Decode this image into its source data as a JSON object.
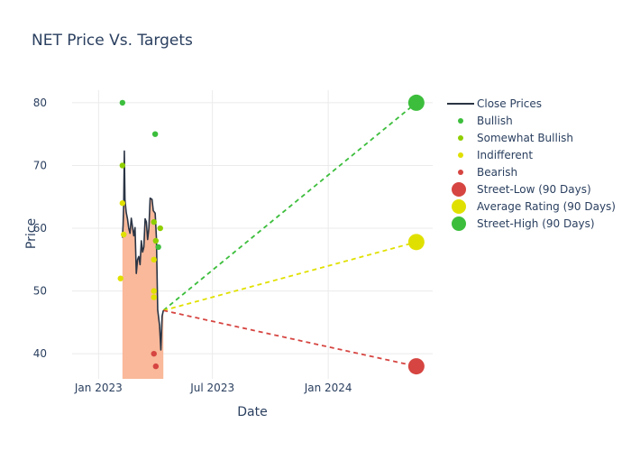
{
  "chart_data": {
    "type": "line",
    "title": "NET Price Vs. Targets",
    "xlabel": "Date",
    "ylabel": "Price",
    "xlim": [
      "2022-11-20",
      "2024-06-15"
    ],
    "ylim": [
      36,
      82
    ],
    "x_ticks": [
      {
        "date": "2023-01-01",
        "label": "Jan 2023"
      },
      {
        "date": "2023-07-01",
        "label": "Jul 2023"
      },
      {
        "date": "2024-01-01",
        "label": "Jan 2024"
      }
    ],
    "y_ticks": [
      40,
      50,
      60,
      70,
      80
    ],
    "grid": true,
    "legend_position": "right",
    "colors": {
      "close": "#2a3444",
      "fill": "#f9b99a",
      "bullish": "#3cbe3c",
      "somewhat_bullish": "#8fce00",
      "indifferent": "#e0e000",
      "bearish": "#d64541"
    },
    "close_prices": [
      [
        "2023-02-08",
        58.5
      ],
      [
        "2023-02-09",
        60.5
      ],
      [
        "2023-02-10",
        64.0
      ],
      [
        "2023-02-11",
        72.3
      ],
      [
        "2023-02-12",
        64.5
      ],
      [
        "2023-02-14",
        62.5
      ],
      [
        "2023-02-16",
        61.5
      ],
      [
        "2023-02-18",
        60.0
      ],
      [
        "2023-02-20",
        59.2
      ],
      [
        "2023-02-22",
        61.6
      ],
      [
        "2023-02-24",
        60.2
      ],
      [
        "2023-02-26",
        58.8
      ],
      [
        "2023-02-28",
        60.1
      ],
      [
        "2023-03-02",
        52.8
      ],
      [
        "2023-03-04",
        55.0
      ],
      [
        "2023-03-06",
        55.5
      ],
      [
        "2023-03-08",
        54.2
      ],
      [
        "2023-03-10",
        58.0
      ],
      [
        "2023-03-12",
        56.2
      ],
      [
        "2023-03-14",
        57.0
      ],
      [
        "2023-03-16",
        61.5
      ],
      [
        "2023-03-18",
        61.0
      ],
      [
        "2023-03-20",
        58.2
      ],
      [
        "2023-03-22",
        60.0
      ],
      [
        "2023-03-24",
        64.8
      ],
      [
        "2023-03-27",
        64.6
      ],
      [
        "2023-03-29",
        62.8
      ],
      [
        "2023-04-01",
        62.4
      ],
      [
        "2023-04-03",
        58.4
      ],
      [
        "2023-04-05",
        47.0
      ],
      [
        "2023-04-08",
        44.5
      ],
      [
        "2023-04-10",
        40.6
      ],
      [
        "2023-04-12",
        46.0
      ],
      [
        "2023-04-14",
        46.9
      ]
    ],
    "analyst_ratings": {
      "Bullish": [
        [
          "2023-02-08",
          80
        ],
        [
          "2023-04-01",
          75
        ],
        [
          "2023-04-06",
          57
        ]
      ],
      "Somewhat Bullish": [
        [
          "2023-02-08",
          70
        ],
        [
          "2023-03-30",
          61
        ],
        [
          "2023-04-02",
          58
        ],
        [
          "2023-04-09",
          60
        ]
      ],
      "Indifferent": [
        [
          "2023-02-05",
          52
        ],
        [
          "2023-02-08",
          64
        ],
        [
          "2023-02-10",
          59
        ],
        [
          "2023-03-30",
          55
        ],
        [
          "2023-03-30",
          50
        ],
        [
          "2023-03-30",
          49
        ]
      ],
      "Bearish": [
        [
          "2023-03-30",
          40
        ],
        [
          "2023-04-02",
          38
        ]
      ]
    },
    "targets": {
      "start": [
        "2023-04-14",
        46.9
      ],
      "end_date": "2024-05-20",
      "street_low": 38.0,
      "average": 57.8,
      "street_high": 80.0
    }
  },
  "legend": {
    "items": [
      {
        "key": "close",
        "label": "Close Prices",
        "type": "line",
        "color": "#2a3444"
      },
      {
        "key": "bullish",
        "label": "Bullish",
        "type": "dot",
        "color": "#3cbe3c"
      },
      {
        "key": "somewhat_bullish",
        "label": "Somewhat Bullish",
        "type": "dot",
        "color": "#8fce00"
      },
      {
        "key": "indifferent",
        "label": "Indifferent",
        "type": "dot",
        "color": "#e0e000"
      },
      {
        "key": "bearish",
        "label": "Bearish",
        "type": "dot",
        "color": "#d64541"
      },
      {
        "key": "street_low",
        "label": "Street-Low (90 Days)",
        "type": "bigdot",
        "color": "#d64541"
      },
      {
        "key": "average",
        "label": "Average Rating (90 Days)",
        "type": "bigdot",
        "color": "#e0e000"
      },
      {
        "key": "street_high",
        "label": "Street-High (90 Days)",
        "type": "bigdot",
        "color": "#3cbe3c"
      }
    ]
  }
}
